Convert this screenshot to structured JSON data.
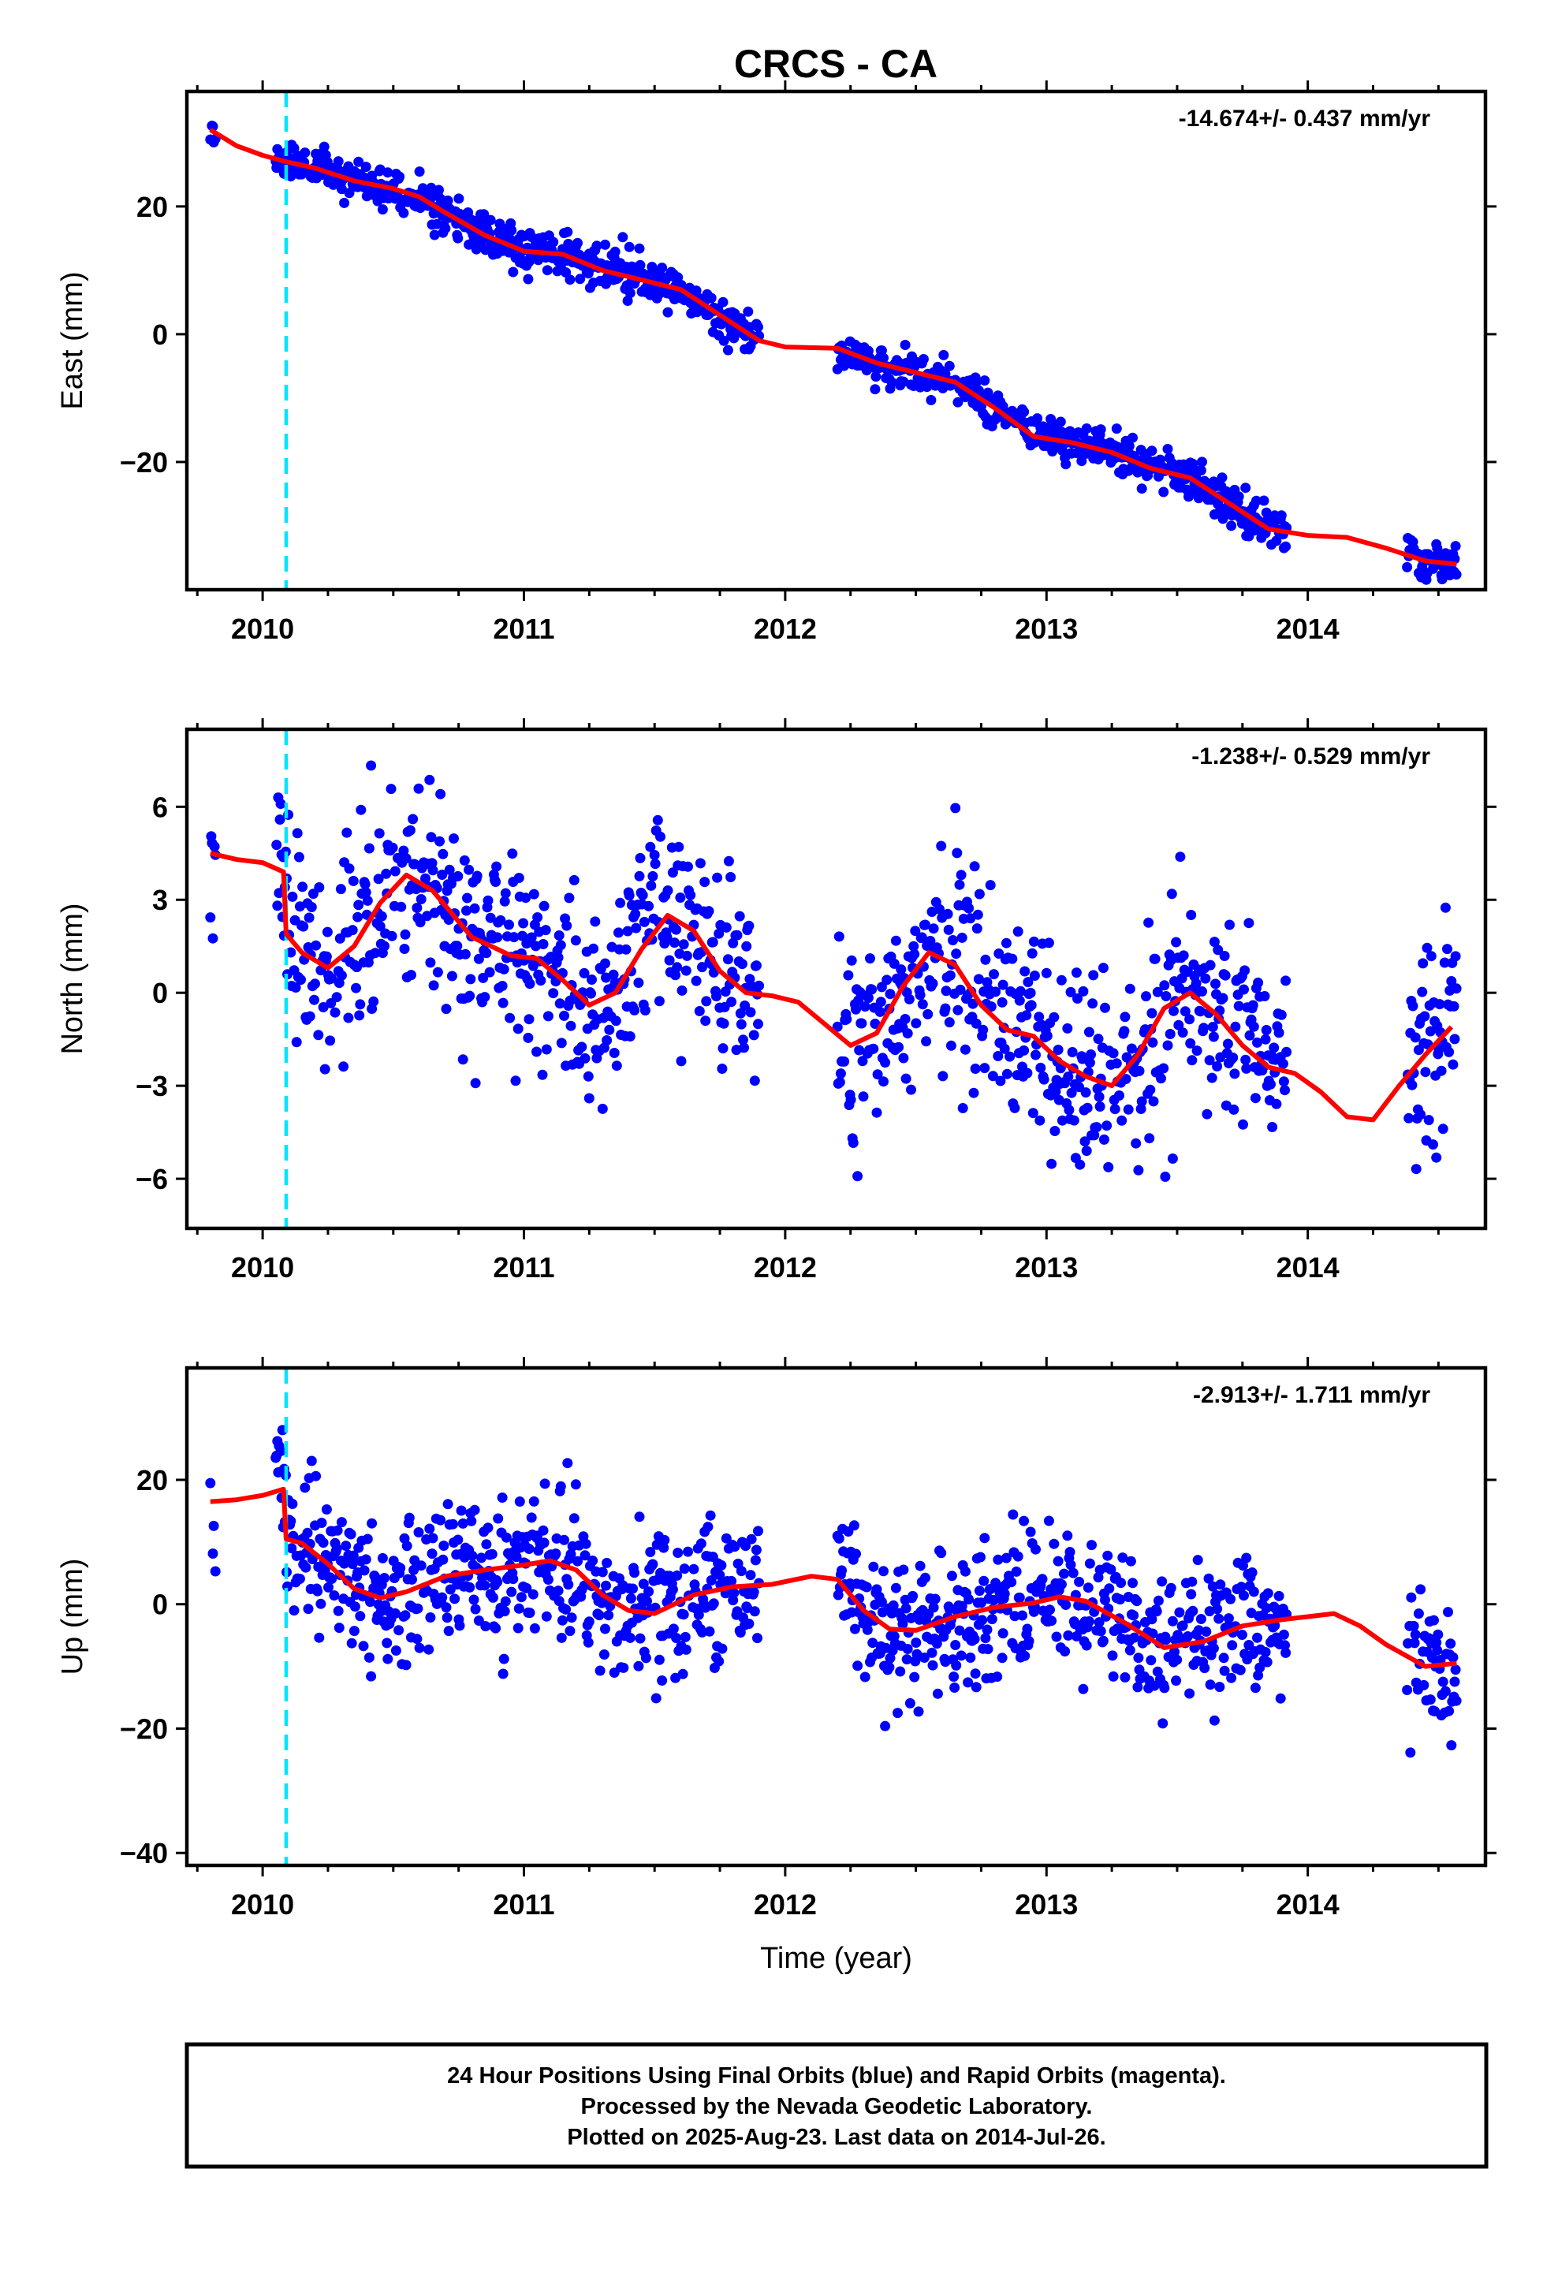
{
  "figure": {
    "title": "CRCS - CA",
    "footer_lines": [
      "24 Hour Positions Using Final Orbits (blue) and Rapid Orbits (magenta).",
      "Processed by the Nevada Geodetic Laboratory.",
      "Plotted on 2025-Aug-23. Last data on 2014-Jul-26."
    ]
  },
  "colors": {
    "points": "#0000ff",
    "fit": "#ff0000",
    "event_line": "#00e5ff",
    "frame": "#000000"
  },
  "chart_data": [
    {
      "type": "scatter",
      "ylabel": "East (mm)",
      "xlabel": "",
      "rate_label": "-14.674+/- 0.437 mm/yr",
      "xlim": [
        2009.71,
        2014.68
      ],
      "ylim": [
        -40,
        38
      ],
      "xticks": [
        2010,
        2011,
        2012,
        2013,
        2014
      ],
      "yticks": [
        20,
        0,
        -20
      ],
      "ytick_labels": [
        "20",
        "0",
        "−20"
      ],
      "event_x": 2010.09,
      "data_segments": [
        [
          2009.8,
          2009.82
        ],
        [
          2010.05,
          2011.9
        ],
        [
          2012.2,
          2013.92
        ],
        [
          2014.38,
          2014.57
        ]
      ],
      "scatter_sigma": 1.6,
      "seed": 11,
      "fit": {
        "x": [
          2009.8,
          2009.9,
          2010.0,
          2010.09,
          2010.2,
          2010.35,
          2010.5,
          2010.6,
          2010.7,
          2010.85,
          2011.0,
          2011.15,
          2011.3,
          2011.45,
          2011.6,
          2011.75,
          2011.9,
          2012.0,
          2012.2,
          2012.35,
          2012.5,
          2012.65,
          2012.8,
          2012.95,
          2013.1,
          2013.25,
          2013.4,
          2013.55,
          2013.7,
          2013.85,
          2014.0,
          2014.15,
          2014.3,
          2014.45,
          2014.57
        ],
        "y": [
          32.0,
          29.5,
          28.0,
          27.0,
          26.0,
          24.0,
          22.8,
          21.5,
          19.0,
          15.5,
          13.0,
          12.5,
          10.0,
          8.5,
          7.0,
          3.0,
          -1.0,
          -2.0,
          -2.2,
          -4.5,
          -6.0,
          -7.5,
          -11.5,
          -16.0,
          -17.0,
          -18.5,
          -21.0,
          -22.5,
          -26.5,
          -30.5,
          -31.5,
          -31.8,
          -33.5,
          -35.5,
          -36.0
        ]
      }
    },
    {
      "type": "scatter",
      "ylabel": "North (mm)",
      "xlabel": "",
      "rate_label": "-1.238+/- 0.529 mm/yr",
      "xlim": [
        2009.71,
        2014.68
      ],
      "ylim": [
        -7.6,
        8.5
      ],
      "xticks": [
        2010,
        2011,
        2012,
        2013,
        2014
      ],
      "yticks": [
        6,
        3,
        0,
        -3,
        -6
      ],
      "ytick_labels": [
        "6",
        "3",
        "0",
        "−3",
        "−6"
      ],
      "event_x": 2010.09,
      "data_segments": [
        [
          2009.8,
          2009.82
        ],
        [
          2010.05,
          2011.9
        ],
        [
          2012.2,
          2013.92
        ],
        [
          2014.38,
          2014.57
        ]
      ],
      "scatter_sigma": 1.6,
      "seed": 23,
      "fit": {
        "x": [
          2009.8,
          2009.9,
          2010.0,
          2010.08,
          2010.09,
          2010.15,
          2010.25,
          2010.35,
          2010.45,
          2010.55,
          2010.65,
          2010.8,
          2010.95,
          2011.05,
          2011.15,
          2011.25,
          2011.35,
          2011.45,
          2011.55,
          2011.65,
          2011.75,
          2011.85,
          2011.95,
          2012.05,
          2012.15,
          2012.25,
          2012.35,
          2012.45,
          2012.55,
          2012.65,
          2012.75,
          2012.85,
          2012.95,
          2013.05,
          2013.15,
          2013.25,
          2013.35,
          2013.45,
          2013.55,
          2013.65,
          2013.75,
          2013.85,
          2013.95,
          2014.05,
          2014.15,
          2014.25,
          2014.35,
          2014.45,
          2014.55
        ],
        "y": [
          4.5,
          4.3,
          4.2,
          3.9,
          1.9,
          1.3,
          0.8,
          1.5,
          2.9,
          3.8,
          3.3,
          1.8,
          1.2,
          1.1,
          0.4,
          -0.4,
          0.0,
          1.4,
          2.5,
          2.0,
          0.7,
          0.0,
          -0.1,
          -0.3,
          -1.0,
          -1.7,
          -1.3,
          0.2,
          1.3,
          0.9,
          -0.4,
          -1.2,
          -1.4,
          -2.2,
          -2.7,
          -3.0,
          -2.0,
          -0.5,
          0.0,
          -0.7,
          -1.7,
          -2.4,
          -2.6,
          -3.2,
          -4.0,
          -4.1,
          -3.0,
          -2.0,
          -1.1
        ]
      }
    },
    {
      "type": "scatter",
      "ylabel": "Up (mm)",
      "xlabel": "Time (year)",
      "rate_label": "-2.913+/- 1.711 mm/yr",
      "xlim": [
        2009.71,
        2014.68
      ],
      "ylim": [
        -42,
        38
      ],
      "xticks": [
        2010,
        2011,
        2012,
        2013,
        2014
      ],
      "yticks": [
        20,
        0,
        -20,
        -40
      ],
      "ytick_labels": [
        "20",
        "0",
        "−20",
        "−40"
      ],
      "event_x": 2010.09,
      "data_segments": [
        [
          2009.8,
          2009.82
        ],
        [
          2010.05,
          2011.9
        ],
        [
          2012.2,
          2013.92
        ],
        [
          2014.38,
          2014.57
        ]
      ],
      "scatter_sigma": 5.5,
      "seed": 37,
      "fit": {
        "x": [
          2009.8,
          2009.9,
          2010.0,
          2010.08,
          2010.09,
          2010.15,
          2010.25,
          2010.35,
          2010.45,
          2010.55,
          2010.7,
          2010.85,
          2011.0,
          2011.1,
          2011.2,
          2011.3,
          2011.4,
          2011.5,
          2011.65,
          2011.8,
          2011.95,
          2012.1,
          2012.2,
          2012.3,
          2012.4,
          2012.5,
          2012.65,
          2012.8,
          2012.95,
          2013.05,
          2013.15,
          2013.3,
          2013.45,
          2013.6,
          2013.75,
          2013.9,
          2014.0,
          2014.1,
          2014.2,
          2014.3,
          2014.45,
          2014.57
        ],
        "y": [
          16.5,
          16.8,
          17.5,
          18.5,
          10.5,
          9.8,
          6.5,
          2.5,
          1.0,
          2.0,
          4.5,
          5.5,
          6.3,
          7.0,
          5.5,
          1.5,
          -1.0,
          -1.5,
          1.5,
          2.8,
          3.2,
          4.5,
          4.0,
          -1.0,
          -4.0,
          -4.2,
          -2.0,
          -0.5,
          0.2,
          1.2,
          0.5,
          -3.0,
          -7.0,
          -6.0,
          -3.5,
          -2.5,
          -2.0,
          -1.5,
          -3.5,
          -6.5,
          -10.0,
          -9.5
        ]
      }
    }
  ]
}
